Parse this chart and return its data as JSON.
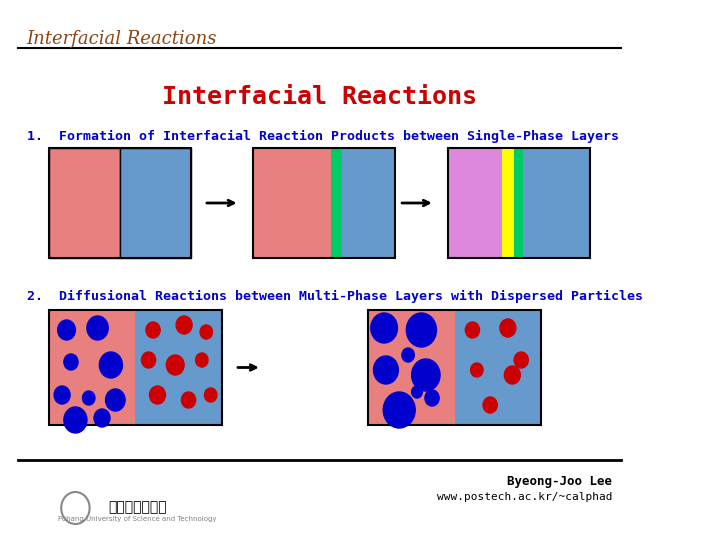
{
  "title": "Interfacial Reactions",
  "header_title": "Interfacial Reactions",
  "header_color": "#8B4513",
  "main_title": "Interfacial Reactions",
  "main_title_color": "#CC0000",
  "section1_label": "1.  Formation of Interfacial Reaction Products between Single-Phase Layers",
  "section2_label": "2.  Diffusional Reactions between Multi-Phase Layers with Dispersed Particles",
  "label_color": "#0000CC",
  "bg_color": "#FFFFFF",
  "footer_text1": "Byeong-Joo Lee",
  "footer_text2": "www.postech.ac.kr/~calphad",
  "colors": {
    "pink": "#E88080",
    "blue": "#6699CC",
    "green": "#00CC66",
    "yellow": "#FFFF00",
    "magenta": "#DD88DD",
    "dark_blue_dot": "#0000CC",
    "red_dot": "#CC0000"
  }
}
